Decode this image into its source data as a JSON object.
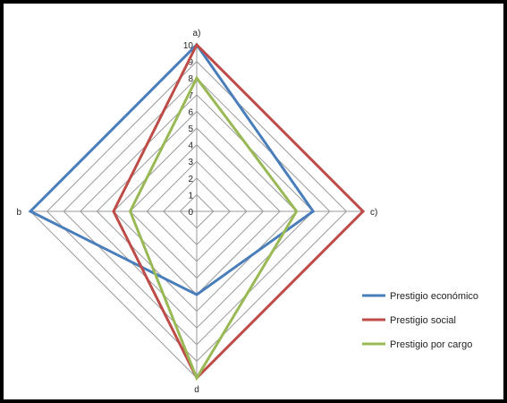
{
  "chart_data": {
    "type": "radar",
    "axes": [
      "a)",
      "b",
      "c)",
      "d"
    ],
    "rlim": [
      0,
      10
    ],
    "ticks": [
      0,
      1,
      2,
      3,
      4,
      5,
      6,
      7,
      8,
      9,
      10
    ],
    "grid": true,
    "legend_position": "right",
    "series": [
      {
        "name": "Prestigio económico",
        "color": "#4a7ebb",
        "values": [
          10,
          10,
          7,
          5
        ]
      },
      {
        "name": "Prestigio social",
        "color": "#be4b48",
        "values": [
          10,
          5,
          10,
          10
        ]
      },
      {
        "name": "Prestigio por cargo",
        "color": "#98b954",
        "values": [
          8,
          4,
          6,
          10
        ]
      }
    ]
  }
}
